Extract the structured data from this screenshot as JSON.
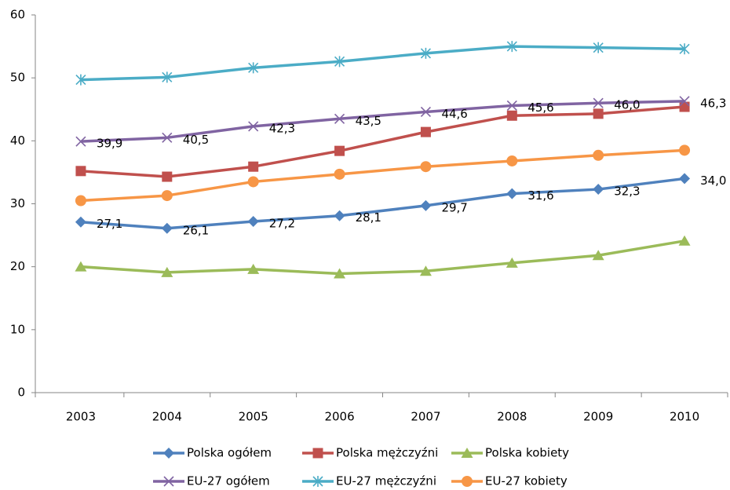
{
  "chart_data": {
    "type": "line",
    "categories": [
      "2003",
      "2004",
      "2005",
      "2006",
      "2007",
      "2008",
      "2009",
      "2010"
    ],
    "ylim": [
      0,
      60
    ],
    "yticks": [
      0,
      10,
      20,
      30,
      40,
      50,
      60
    ],
    "grid": false,
    "legend": "bottom",
    "series": [
      {
        "name": "Polska ogółem",
        "color": "#4F81BD",
        "marker": "diamond",
        "values": [
          27.1,
          26.1,
          27.2,
          28.1,
          29.7,
          31.6,
          32.3,
          34.0
        ],
        "value_labels": [
          "27,1",
          "26,1",
          "27,2",
          "28,1",
          "29,7",
          "31,6",
          "32,3",
          "34,0"
        ]
      },
      {
        "name": "Polska mężczyźni",
        "color": "#C0504D",
        "marker": "square",
        "values": [
          35.2,
          34.3,
          35.9,
          38.4,
          41.4,
          44.0,
          44.3,
          45.4
        ]
      },
      {
        "name": "Polska kobiety",
        "color": "#9BBB59",
        "marker": "triangle",
        "values": [
          20.0,
          19.1,
          19.6,
          18.9,
          19.3,
          20.6,
          21.8,
          24.1
        ]
      },
      {
        "name": "EU-27 ogółem",
        "color": "#8064A2",
        "marker": "x",
        "values": [
          39.9,
          40.5,
          42.3,
          43.5,
          44.6,
          45.6,
          46.0,
          46.3
        ],
        "value_labels": [
          "39,9",
          "40,5",
          "42,3",
          "43,5",
          "44,6",
          "45,6",
          "46,0",
          "46,3"
        ]
      },
      {
        "name": "EU-27 mężczyźni",
        "color": "#4BACC6",
        "marker": "star",
        "values": [
          49.7,
          50.1,
          51.6,
          52.6,
          53.9,
          55.0,
          54.8,
          54.6
        ]
      },
      {
        "name": "EU-27 kobiety",
        "color": "#F79646",
        "marker": "circle",
        "values": [
          30.5,
          31.3,
          33.5,
          34.7,
          35.9,
          36.8,
          37.7,
          38.5
        ]
      }
    ]
  }
}
